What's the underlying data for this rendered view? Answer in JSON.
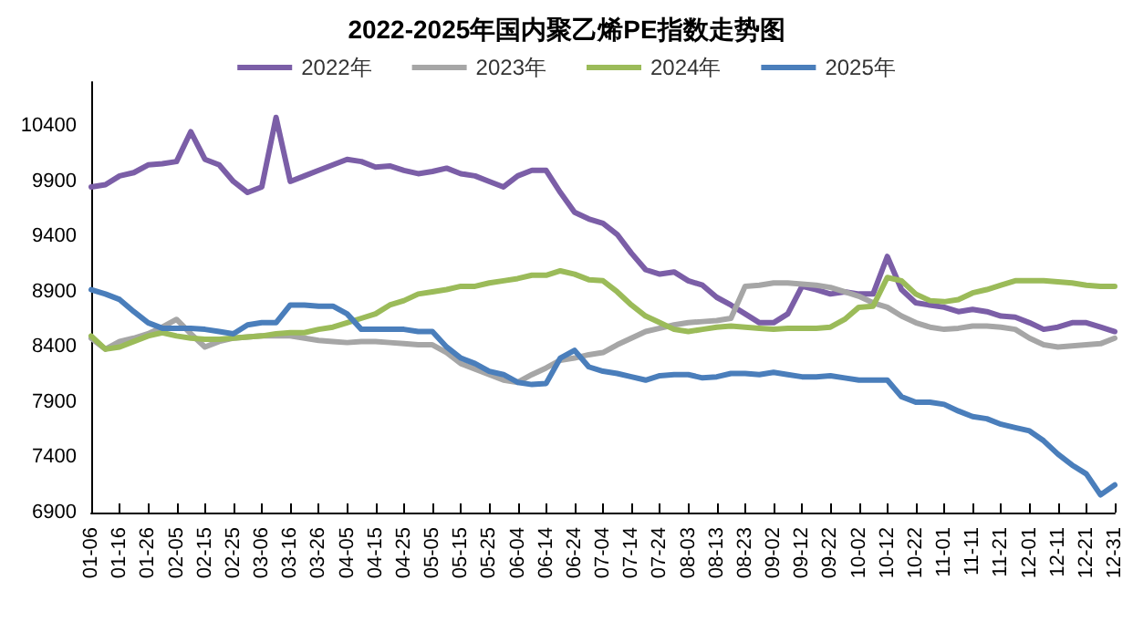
{
  "chart_data": {
    "type": "line",
    "title": "2022-2025年国内聚乙烯PE指数走势图",
    "categories": [
      "01-06",
      null,
      "01-16",
      null,
      "01-26",
      null,
      "02-05",
      null,
      "02-15",
      null,
      "02-25",
      null,
      "03-06",
      null,
      "03-16",
      null,
      "03-26",
      null,
      "04-05",
      null,
      "04-15",
      null,
      "04-25",
      null,
      "05-05",
      null,
      "05-15",
      null,
      "05-25",
      null,
      "06-04",
      null,
      "06-14",
      null,
      "06-24",
      null,
      "07-04",
      null,
      "07-14",
      null,
      "07-24",
      null,
      "08-03",
      null,
      "08-13",
      null,
      "08-23",
      null,
      "09-02",
      null,
      "09-12",
      null,
      "09-22",
      null,
      "10-02",
      null,
      "10-12",
      null,
      "10-22",
      null,
      "11-01",
      null,
      "11-11",
      null,
      "11-21",
      null,
      "12-01",
      null,
      "12-11",
      null,
      "12-21",
      null,
      "12-31"
    ],
    "series": [
      {
        "name": "2022年",
        "color": "#7b5ea7",
        "values": [
          9850,
          9870,
          9950,
          9980,
          10050,
          10060,
          10080,
          10350,
          10100,
          10050,
          9900,
          9800,
          9850,
          10480,
          9900,
          9950,
          10000,
          10050,
          10100,
          10080,
          10030,
          10040,
          10000,
          9970,
          9990,
          10020,
          9970,
          9950,
          9900,
          9850,
          9950,
          10000,
          10000,
          9800,
          9620,
          9560,
          9520,
          9420,
          9250,
          9100,
          9060,
          9080,
          9000,
          8960,
          8850,
          8780,
          8700,
          8620,
          8620,
          8700,
          8950,
          8920,
          8880,
          8900,
          8880,
          8880,
          9220,
          8920,
          8800,
          8780,
          8760,
          8720,
          8740,
          8720,
          8680,
          8670,
          8620,
          8560,
          8580,
          8620,
          8620,
          8580,
          8540
        ]
      },
      {
        "name": "2023年",
        "color": "#a6a6a6",
        "values": [
          8480,
          8380,
          8450,
          8480,
          8520,
          8580,
          8650,
          8520,
          8400,
          8450,
          8480,
          8490,
          8500,
          8500,
          8500,
          8480,
          8460,
          8450,
          8440,
          8450,
          8450,
          8440,
          8430,
          8420,
          8420,
          8350,
          8250,
          8200,
          8150,
          8100,
          8080,
          8150,
          8210,
          8280,
          8300,
          8330,
          8350,
          8420,
          8480,
          8540,
          8570,
          8600,
          8620,
          8630,
          8640,
          8660,
          8950,
          8960,
          8980,
          8980,
          8970,
          8960,
          8940,
          8900,
          8860,
          8800,
          8760,
          8680,
          8620,
          8580,
          8560,
          8570,
          8590,
          8590,
          8580,
          8560,
          8480,
          8420,
          8400,
          8410,
          8420,
          8430,
          8480
        ]
      },
      {
        "name": "2024年",
        "color": "#9bbb59",
        "values": [
          8500,
          8380,
          8400,
          8450,
          8500,
          8530,
          8500,
          8480,
          8470,
          8470,
          8480,
          8490,
          8500,
          8520,
          8530,
          8530,
          8560,
          8580,
          8620,
          8660,
          8700,
          8780,
          8820,
          8880,
          8900,
          8920,
          8950,
          8950,
          8980,
          9000,
          9020,
          9050,
          9050,
          9090,
          9060,
          9010,
          9000,
          8900,
          8780,
          8680,
          8620,
          8560,
          8540,
          8560,
          8580,
          8590,
          8580,
          8570,
          8560,
          8570,
          8570,
          8570,
          8580,
          8650,
          8760,
          8770,
          9030,
          9000,
          8880,
          8820,
          8810,
          8830,
          8890,
          8920,
          8960,
          9000,
          9000,
          9000,
          8990,
          8980,
          8960,
          8950,
          8950
        ]
      },
      {
        "name": "2025年",
        "color": "#4a7ebb",
        "values": [
          8920,
          8880,
          8830,
          8720,
          8620,
          8570,
          8570,
          8570,
          8560,
          8540,
          8520,
          8600,
          8620,
          8620,
          8780,
          8780,
          8770,
          8770,
          8700,
          8560,
          8560,
          8560,
          8560,
          8540,
          8540,
          8400,
          8300,
          8250,
          8180,
          8150,
          8080,
          8060,
          8070,
          8300,
          8370,
          8220,
          8180,
          8160,
          8130,
          8100,
          8140,
          8150,
          8150,
          8120,
          8130,
          8160,
          8160,
          8150,
          8170,
          8150,
          8130,
          8130,
          8140,
          8120,
          8100,
          8100,
          8100,
          7950,
          7900,
          7900,
          7880,
          7820,
          7770,
          7750,
          7700,
          7670,
          7640,
          7550,
          7430,
          7330,
          7250,
          7060,
          7150
        ]
      }
    ],
    "ylim": [
      6900,
      10800
    ],
    "yticks": [
      6900,
      7400,
      7900,
      8400,
      8900,
      9400,
      9900,
      10400
    ],
    "grid": false,
    "legend": "top",
    "marker": "none",
    "line_style": "solid"
  }
}
